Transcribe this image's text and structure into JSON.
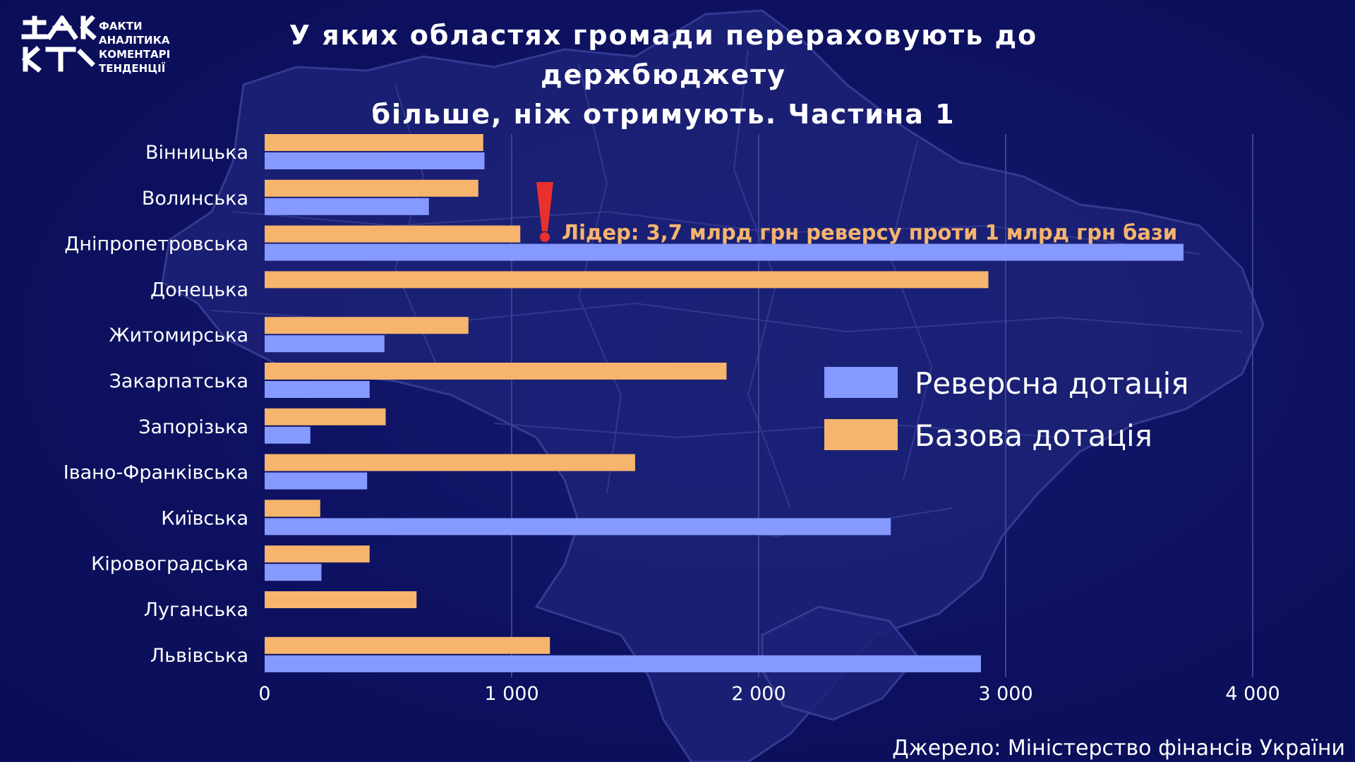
{
  "logo": {
    "words": [
      "ФАКТИ",
      "АНАЛІТИКА",
      "КОМЕНТАРІ",
      "ТЕНДЕНЦІЇ"
    ]
  },
  "title_lines": [
    "У яких областях громади перераховують до держбюджету",
    "більше, ніж отримують. Частина 1"
  ],
  "source": "Джерело: Міністерство фінансів України",
  "colors": {
    "background": "#0c0f5c",
    "reverse": "#8599ff",
    "base": "#f6b46d",
    "annotation": "#f6b46d",
    "exclamation": "#e8302d",
    "grid": "#3d4392",
    "map": "#1e2478"
  },
  "chart_data": {
    "type": "bar",
    "orientation": "horizontal",
    "title": "У яких областях громади перераховують до держбюджету більше, ніж отримують. Частина 1",
    "xlabel": "",
    "ylabel": "",
    "xlim": [
      0,
      4000
    ],
    "x_ticks": [
      0,
      1000,
      2000,
      3000,
      4000
    ],
    "x_tick_labels": [
      "0",
      "1 000",
      "2 000",
      "3 000",
      "4 000"
    ],
    "grid": "vertical",
    "legend_position": "right",
    "categories": [
      "Вінницька",
      "Волинська",
      "Дніпропетровська",
      "Донецька",
      "Житомирська",
      "Закарпатська",
      "Запорізька",
      "Івано-Франківська",
      "Київська",
      "Кіровоградська",
      "Луганська",
      "Львівська"
    ],
    "series": [
      {
        "name": "Базова дотація",
        "color": "#f6b46d",
        "values": [
          885,
          865,
          1035,
          2930,
          825,
          1870,
          490,
          1500,
          225,
          425,
          615,
          1155
        ]
      },
      {
        "name": "Реверсна дотація",
        "color": "#8599ff",
        "values": [
          890,
          665,
          3720,
          0,
          485,
          425,
          185,
          415,
          2535,
          230,
          0,
          2900
        ]
      }
    ],
    "legend_order": [
      "Реверсна дотація",
      "Базова дотація"
    ],
    "annotation": {
      "text": "Лідер: 3,7 млрд грн реверсу проти 1 млрд грн бази",
      "category": "Дніпропетровська",
      "icon": "exclamation-icon"
    }
  }
}
